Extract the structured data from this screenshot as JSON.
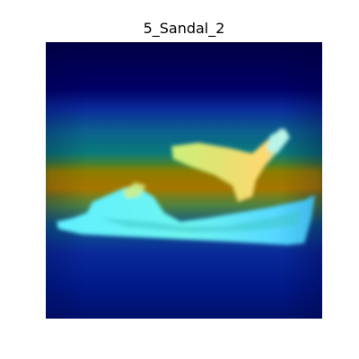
{
  "figure": {
    "title": "5_Sandal_2"
  },
  "image": {
    "subject": "sandal",
    "colormap": "jet",
    "overlay_colors": [
      "#000049",
      "#00009e",
      "#0f3ea2",
      "#007a84",
      "#7f8f00",
      "#c17a00",
      "#6fffef",
      "#ffe77a"
    ]
  }
}
